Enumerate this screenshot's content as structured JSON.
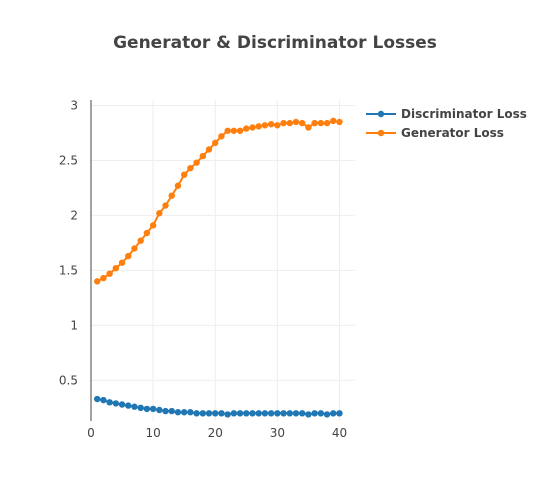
{
  "chart_data": {
    "type": "line",
    "title": "Generator & Discriminator Losses",
    "xlabel": "",
    "ylabel": "",
    "xlim": [
      0,
      42.5
    ],
    "ylim": [
      0.13,
      3.05
    ],
    "xticks": [
      0,
      10,
      20,
      30,
      40
    ],
    "yticks": [
      0.5,
      1,
      1.5,
      2,
      2.5,
      3
    ],
    "ytick_labels": [
      "0.5",
      "1",
      "1.5",
      "2",
      "2.5",
      "3"
    ],
    "grid": true,
    "legend_position": "top-right",
    "x": [
      1,
      2,
      3,
      4,
      5,
      6,
      7,
      8,
      9,
      10,
      11,
      12,
      13,
      14,
      15,
      16,
      17,
      18,
      19,
      20,
      21,
      22,
      23,
      24,
      25,
      26,
      27,
      28,
      29,
      30,
      31,
      32,
      33,
      34,
      35,
      36,
      37,
      38,
      39,
      40
    ],
    "series": [
      {
        "name": "Discriminator Loss",
        "color": "#1f77b4",
        "values": [
          0.33,
          0.32,
          0.3,
          0.29,
          0.28,
          0.27,
          0.26,
          0.25,
          0.24,
          0.24,
          0.23,
          0.22,
          0.22,
          0.21,
          0.21,
          0.21,
          0.2,
          0.2,
          0.2,
          0.2,
          0.2,
          0.19,
          0.2,
          0.2,
          0.2,
          0.2,
          0.2,
          0.2,
          0.2,
          0.2,
          0.2,
          0.2,
          0.2,
          0.2,
          0.19,
          0.2,
          0.2,
          0.19,
          0.2,
          0.2
        ]
      },
      {
        "name": "Generator Loss",
        "color": "#ff7f0e",
        "values": [
          1.4,
          1.43,
          1.47,
          1.52,
          1.57,
          1.63,
          1.7,
          1.77,
          1.84,
          1.91,
          2.02,
          2.09,
          2.18,
          2.27,
          2.37,
          2.43,
          2.48,
          2.54,
          2.6,
          2.66,
          2.72,
          2.77,
          2.77,
          2.77,
          2.79,
          2.8,
          2.81,
          2.82,
          2.83,
          2.82,
          2.84,
          2.84,
          2.85,
          2.84,
          2.8,
          2.84,
          2.84,
          2.84,
          2.86,
          2.85
        ]
      }
    ]
  }
}
